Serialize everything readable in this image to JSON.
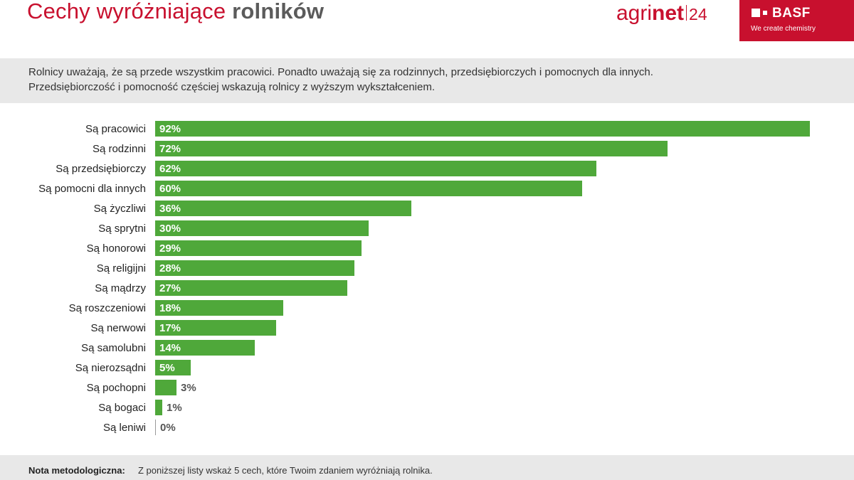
{
  "header": {
    "title_regular": "Cechy wyróżniające",
    "title_bold": "rolników",
    "agrinet_agri": "agri",
    "agrinet_net": "net",
    "agrinet_num": "24",
    "basf_name": "BASF",
    "basf_tagline": "We create chemistry"
  },
  "summary": {
    "line1": "Rolnicy uważają, że są przede wszystkim pracowici. Ponadto uważają się za rodzinnych, przedsiębiorczych i pomocnych dla innych.",
    "line2": "Przedsiębiorczość i pomocność częściej wskazują rolnicy z wyższym wykształceniem."
  },
  "colors": {
    "bar": "#4fa83a",
    "brand_red": "#c8102e",
    "band_gray": "#e8e8e8"
  },
  "chart_data": {
    "type": "bar",
    "orientation": "horizontal",
    "categories": [
      "Są pracowici",
      "Są rodzinni",
      "Są przedsiębiorczy",
      "Są pomocni dla innych",
      "Są życzliwi",
      "Są sprytni",
      "Są honorowi",
      "Są religijni",
      "Są mądrzy",
      "Są roszczeniowi",
      "Są nerwowi",
      "Są samolubni",
      "Są nierozsądni",
      "Są pochopni",
      "Są bogaci",
      "Są leniwi"
    ],
    "values": [
      92,
      72,
      62,
      60,
      36,
      30,
      29,
      28,
      27,
      18,
      17,
      14,
      5,
      3,
      1,
      0
    ],
    "value_labels": [
      "92%",
      "72%",
      "62%",
      "60%",
      "36%",
      "30%",
      "29%",
      "28%",
      "27%",
      "18%",
      "17%",
      "14%",
      "5%",
      "3%",
      "1%",
      "0%"
    ],
    "xlim": [
      0,
      92
    ],
    "grid": false,
    "legend": "none"
  },
  "footer": {
    "note_label": "Nota metodologiczna:",
    "note_text": "Z poniższej listy wskaż 5 cech, które Twoim zdaniem wyróżniają rolnika."
  }
}
